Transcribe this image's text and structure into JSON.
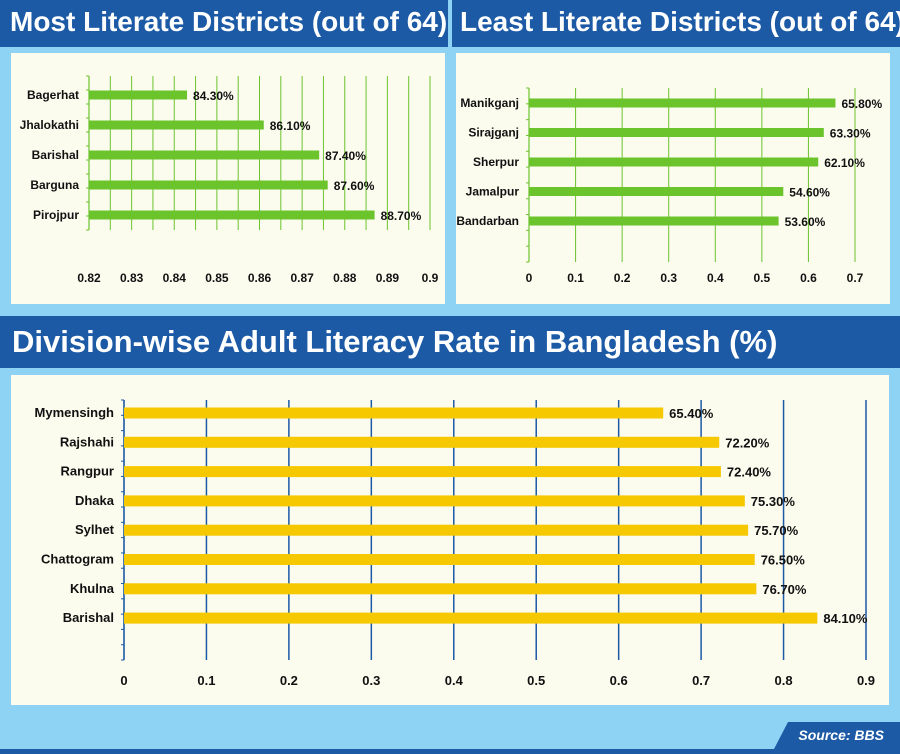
{
  "headers": {
    "most": "Most Literate Districts (out of 64)",
    "least": "Least Literate Districts (out of 64)",
    "division": "Division-wise Adult Literacy Rate in Bangladesh (%)"
  },
  "source": "Source: BBS",
  "colors": {
    "band": "#1c5aa6",
    "background": "#8fd3f4",
    "panel": "#fbfbee",
    "green": "#6cc42d",
    "yellow": "#f5c800",
    "grid_green": "#6cc42d",
    "grid_blue": "#1c5aa6"
  },
  "chart_data": [
    {
      "type": "bar",
      "orientation": "horizontal",
      "title": "Most Literate Districts (out of 64)",
      "categories": [
        "Bagerhat",
        "Jhalokathi",
        "Barishal",
        "Barguna",
        "Pirojpur"
      ],
      "values": [
        0.843,
        0.861,
        0.874,
        0.876,
        0.887
      ],
      "data_labels": [
        "84.30%",
        "86.10%",
        "87.40%",
        "87.60%",
        "88.70%"
      ],
      "xlim": [
        0.82,
        0.9
      ],
      "xticks": [
        "0.82",
        "0.83",
        "0.84",
        "0.85",
        "0.86",
        "0.87",
        "0.88",
        "0.89",
        "0.9"
      ],
      "grid": true
    },
    {
      "type": "bar",
      "orientation": "horizontal",
      "title": "Least Literate Districts (out of 64)",
      "categories": [
        "Manikganj",
        "Sirajganj",
        "Sherpur",
        "Jamalpur",
        "Bandarban"
      ],
      "values": [
        0.658,
        0.633,
        0.621,
        0.546,
        0.536
      ],
      "data_labels": [
        "65.80%",
        "63.30%",
        "62.10%",
        "54.60%",
        "53.60%"
      ],
      "xlim": [
        0,
        0.7
      ],
      "xticks": [
        "0",
        "0.1",
        "0.2",
        "0.3",
        "0.4",
        "0.5",
        "0.6",
        "0.7"
      ],
      "grid": true
    },
    {
      "type": "bar",
      "orientation": "horizontal",
      "title": "Division-wise Adult Literacy Rate in Bangladesh (%)",
      "categories": [
        "Mymensingh",
        "Rajshahi",
        "Rangpur",
        "Dhaka",
        "Sylhet",
        "Chattogram",
        "Khulna",
        "Barishal"
      ],
      "values": [
        0.654,
        0.722,
        0.724,
        0.753,
        0.757,
        0.765,
        0.767,
        0.841
      ],
      "data_labels": [
        "65.40%",
        "72.20%",
        "72.40%",
        "75.30%",
        "75.70%",
        "76.50%",
        "76.70%",
        "84.10%"
      ],
      "xlim": [
        0,
        0.9
      ],
      "xticks": [
        "0",
        "0.1",
        "0.2",
        "0.3",
        "0.4",
        "0.5",
        "0.6",
        "0.7",
        "0.8",
        "0.9"
      ],
      "grid": true
    }
  ]
}
